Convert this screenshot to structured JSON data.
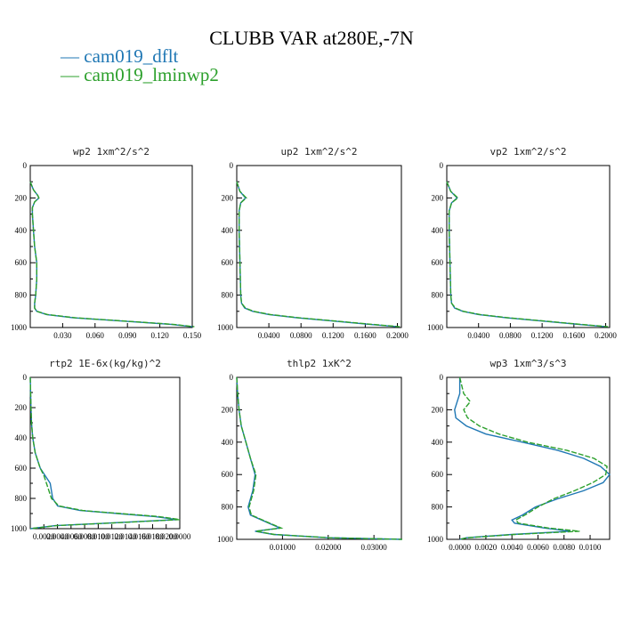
{
  "title": "CLUBB VAR at280E,-7N",
  "legend": [
    {
      "label": "cam019_dflt",
      "color": "#1f77b4"
    },
    {
      "label": "cam019_lminwp2",
      "color": "#2ca02c"
    }
  ],
  "chart_data": [
    {
      "type": "line",
      "title": "wp2   1xm^2/s^2",
      "xlim": [
        0,
        0.15
      ],
      "xticks": [
        "0.030",
        "0.060",
        "0.090",
        "0.120",
        "0.150"
      ],
      "ylim": [
        1000,
        0
      ],
      "yticks": [
        "0",
        "200",
        "400",
        "600",
        "800",
        "1000"
      ],
      "y": [
        100,
        150,
        185,
        200,
        225,
        260,
        300,
        400,
        500,
        600,
        700,
        800,
        850,
        880,
        900,
        920,
        940,
        960,
        980,
        995
      ],
      "series": [
        {
          "name": "cam019_dflt",
          "x": [
            0,
            0.003,
            0.007,
            0.008,
            0.004,
            0.002,
            0.002,
            0.003,
            0.004,
            0.006,
            0.006,
            0.005,
            0.004,
            0.004,
            0.006,
            0.015,
            0.04,
            0.085,
            0.13,
            0.15
          ]
        },
        {
          "name": "cam019_lminwp2",
          "x": [
            0,
            0.003,
            0.007,
            0.008,
            0.004,
            0.002,
            0.002,
            0.003,
            0.004,
            0.006,
            0.006,
            0.005,
            0.004,
            0.004,
            0.006,
            0.016,
            0.042,
            0.087,
            0.132,
            0.152
          ]
        }
      ]
    },
    {
      "type": "line",
      "title": "up2   1xm^2/s^2",
      "xlim": [
        0,
        0.205
      ],
      "xticks": [
        "0.0400",
        "0.0800",
        "0.1200",
        "0.1600",
        "0.2000"
      ],
      "ylim": [
        1000,
        0
      ],
      "yticks": [
        "0",
        "200",
        "400",
        "600",
        "800",
        "1000"
      ],
      "y": [
        100,
        160,
        200,
        230,
        280,
        400,
        600,
        800,
        850,
        880,
        900,
        920,
        940,
        960,
        980,
        995
      ],
      "series": [
        {
          "name": "cam019_dflt",
          "x": [
            0,
            0.004,
            0.011,
            0.005,
            0.003,
            0.003,
            0.004,
            0.005,
            0.006,
            0.01,
            0.02,
            0.04,
            0.075,
            0.12,
            0.165,
            0.2
          ]
        },
        {
          "name": "cam019_lminwp2",
          "x": [
            0,
            0.004,
            0.012,
            0.005,
            0.003,
            0.003,
            0.004,
            0.005,
            0.006,
            0.011,
            0.021,
            0.042,
            0.078,
            0.123,
            0.168,
            0.203
          ]
        }
      ]
    },
    {
      "type": "line",
      "title": "vp2   1xm^2/s^2",
      "xlim": [
        0,
        0.205
      ],
      "xticks": [
        "0.0400",
        "0.0800",
        "0.1200",
        "0.1600",
        "0.2000"
      ],
      "ylim": [
        1000,
        0
      ],
      "yticks": [
        "0",
        "200",
        "400",
        "600",
        "800",
        "1000"
      ],
      "y": [
        100,
        160,
        200,
        230,
        280,
        400,
        600,
        800,
        850,
        880,
        900,
        920,
        940,
        960,
        980,
        995
      ],
      "series": [
        {
          "name": "cam019_dflt",
          "x": [
            0,
            0.005,
            0.013,
            0.006,
            0.003,
            0.003,
            0.004,
            0.005,
            0.006,
            0.01,
            0.02,
            0.04,
            0.075,
            0.12,
            0.165,
            0.2
          ]
        },
        {
          "name": "cam019_lminwp2",
          "x": [
            0,
            0.005,
            0.014,
            0.006,
            0.003,
            0.003,
            0.004,
            0.005,
            0.006,
            0.011,
            0.021,
            0.042,
            0.078,
            0.123,
            0.168,
            0.203
          ]
        }
      ]
    },
    {
      "type": "line",
      "title": "rtp2   1E-6x(kg/kg)^2",
      "xlim": [
        0,
        0.12
      ],
      "xticks": [
        "0.0020",
        "0.0040",
        "0.0060",
        "0.0080",
        "0.0100",
        "0.0120",
        "0.0140",
        "0.0160",
        "0.0180",
        "0.0200",
        "0.0000"
      ],
      "ylim": [
        1000,
        0
      ],
      "yticks": [
        "0",
        "200",
        "400",
        "600",
        "800",
        "1000"
      ],
      "y": [
        0,
        100,
        200,
        300,
        400,
        500,
        600,
        650,
        700,
        750,
        800,
        850,
        880,
        900,
        920,
        940,
        960,
        980,
        1000
      ],
      "series": [
        {
          "name": "cam019_dflt",
          "x": [
            0,
            0.0003,
            0.0006,
            0.001,
            0.002,
            0.004,
            0.008,
            0.012,
            0.016,
            0.017,
            0.018,
            0.022,
            0.04,
            0.07,
            0.1,
            0.118,
            0.07,
            0.02,
            0.0
          ]
        },
        {
          "name": "cam019_lminwp2",
          "x": [
            0,
            0.0003,
            0.0006,
            0.001,
            0.002,
            0.004,
            0.008,
            0.011,
            0.013,
            0.015,
            0.017,
            0.023,
            0.042,
            0.072,
            0.103,
            0.12,
            0.072,
            0.021,
            0.0
          ]
        }
      ]
    },
    {
      "type": "line",
      "title": "thlp2   1xK^2",
      "xlim": [
        0,
        0.036
      ],
      "xticks": [
        "0.01000",
        "0.02000",
        "0.03000"
      ],
      "ylim": [
        1000,
        0
      ],
      "yticks": [
        "0",
        "200",
        "400",
        "600",
        "800",
        "1000"
      ],
      "y": [
        0,
        100,
        200,
        300,
        400,
        500,
        600,
        700,
        800,
        850,
        900,
        930,
        950,
        970,
        990,
        1000
      ],
      "series": [
        {
          "name": "cam019_dflt",
          "x": [
            0,
            0.0002,
            0.0005,
            0.001,
            0.002,
            0.003,
            0.004,
            0.0035,
            0.0025,
            0.003,
            0.007,
            0.0095,
            0.004,
            0.008,
            0.02,
            0.036
          ]
        },
        {
          "name": "cam019_lminwp2",
          "x": [
            0,
            0.0002,
            0.0005,
            0.001,
            0.002,
            0.003,
            0.0042,
            0.0037,
            0.0027,
            0.0032,
            0.0072,
            0.0097,
            0.0042,
            0.0082,
            0.0202,
            0.0362
          ]
        }
      ]
    },
    {
      "type": "line",
      "title": "wp3   1xm^3/s^3",
      "xlim": [
        -0.001,
        0.0115
      ],
      "xticks": [
        "0.0000",
        "0.0020",
        "0.0040",
        "0.0060",
        "0.0080",
        "0.0100"
      ],
      "ylim": [
        1000,
        0
      ],
      "yticks": [
        "0",
        "200",
        "400",
        "600",
        "800",
        "1000"
      ],
      "y": [
        0,
        100,
        150,
        200,
        250,
        300,
        350,
        400,
        450,
        500,
        550,
        600,
        650,
        700,
        750,
        800,
        850,
        880,
        900,
        930,
        950,
        970,
        990,
        1000
      ],
      "series": [
        {
          "name": "cam019_dflt",
          "x": [
            0,
            0,
            -0.0002,
            -0.0004,
            -0.0003,
            0.0005,
            0.002,
            0.0048,
            0.0075,
            0.0095,
            0.0108,
            0.0115,
            0.011,
            0.0095,
            0.0075,
            0.0058,
            0.0048,
            0.004,
            0.0042,
            0.0065,
            0.0085,
            0.004,
            0.0005,
            0
          ]
        },
        {
          "name": "cam019_lminwp2",
          "x": [
            0,
            0.0003,
            0.0008,
            0.0003,
            0.0006,
            0.0015,
            0.003,
            0.0052,
            0.0082,
            0.0103,
            0.0113,
            0.0112,
            0.0102,
            0.0088,
            0.0072,
            0.006,
            0.005,
            0.0043,
            0.0045,
            0.0068,
            0.0092,
            0.0042,
            0.0006,
            0
          ]
        }
      ]
    }
  ]
}
